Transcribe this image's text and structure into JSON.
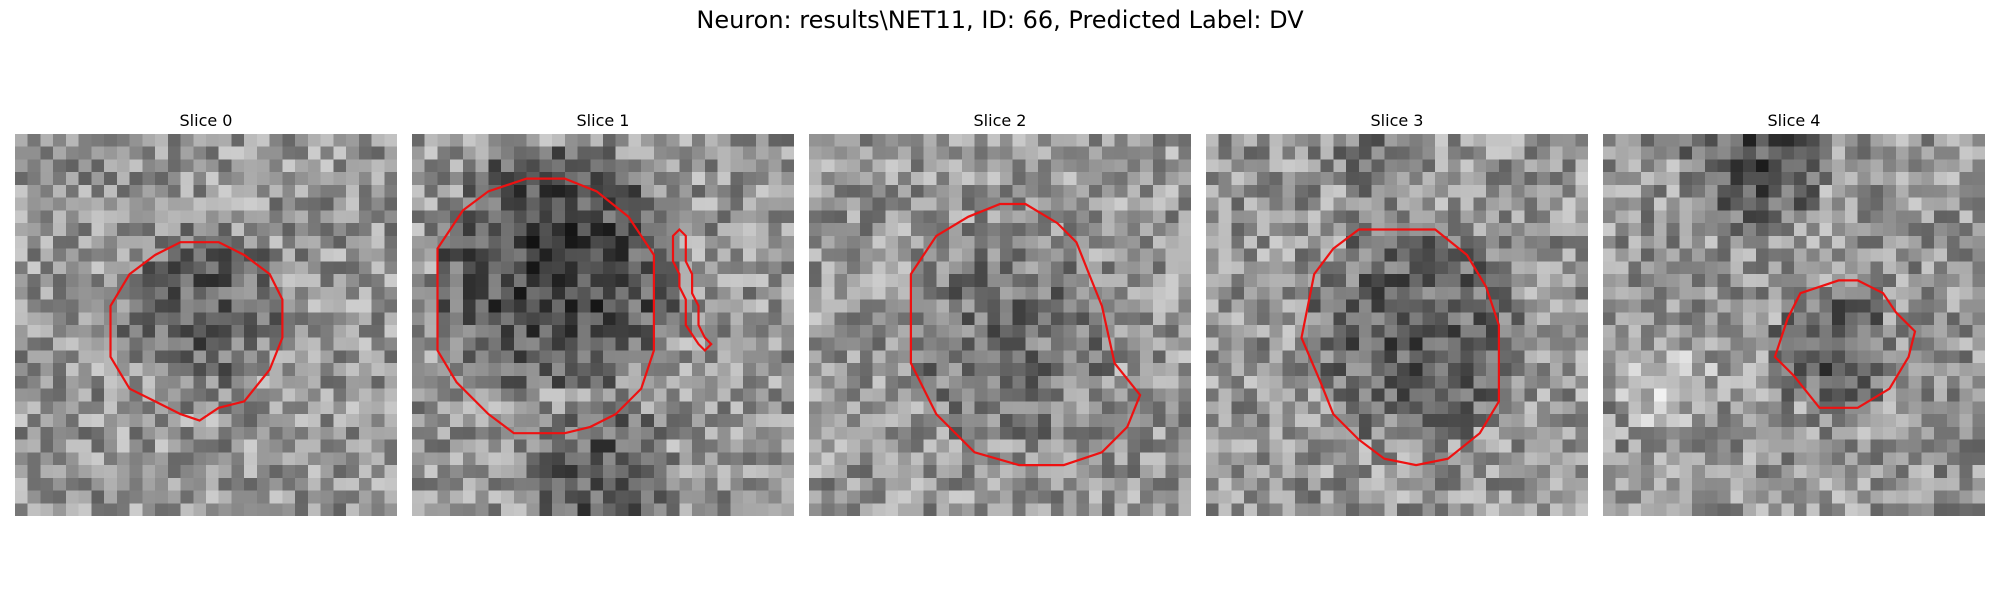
{
  "figure": {
    "title": "Neuron: results\\NET11, ID: 66, Predicted Label: DV"
  },
  "panels": [
    {
      "title": "Slice 0"
    },
    {
      "title": "Slice 1"
    },
    {
      "title": "Slice 2"
    },
    {
      "title": "Slice 3"
    },
    {
      "title": "Slice 4"
    }
  ],
  "colors": {
    "contour": "#ee1111",
    "background": "#ffffff"
  }
}
